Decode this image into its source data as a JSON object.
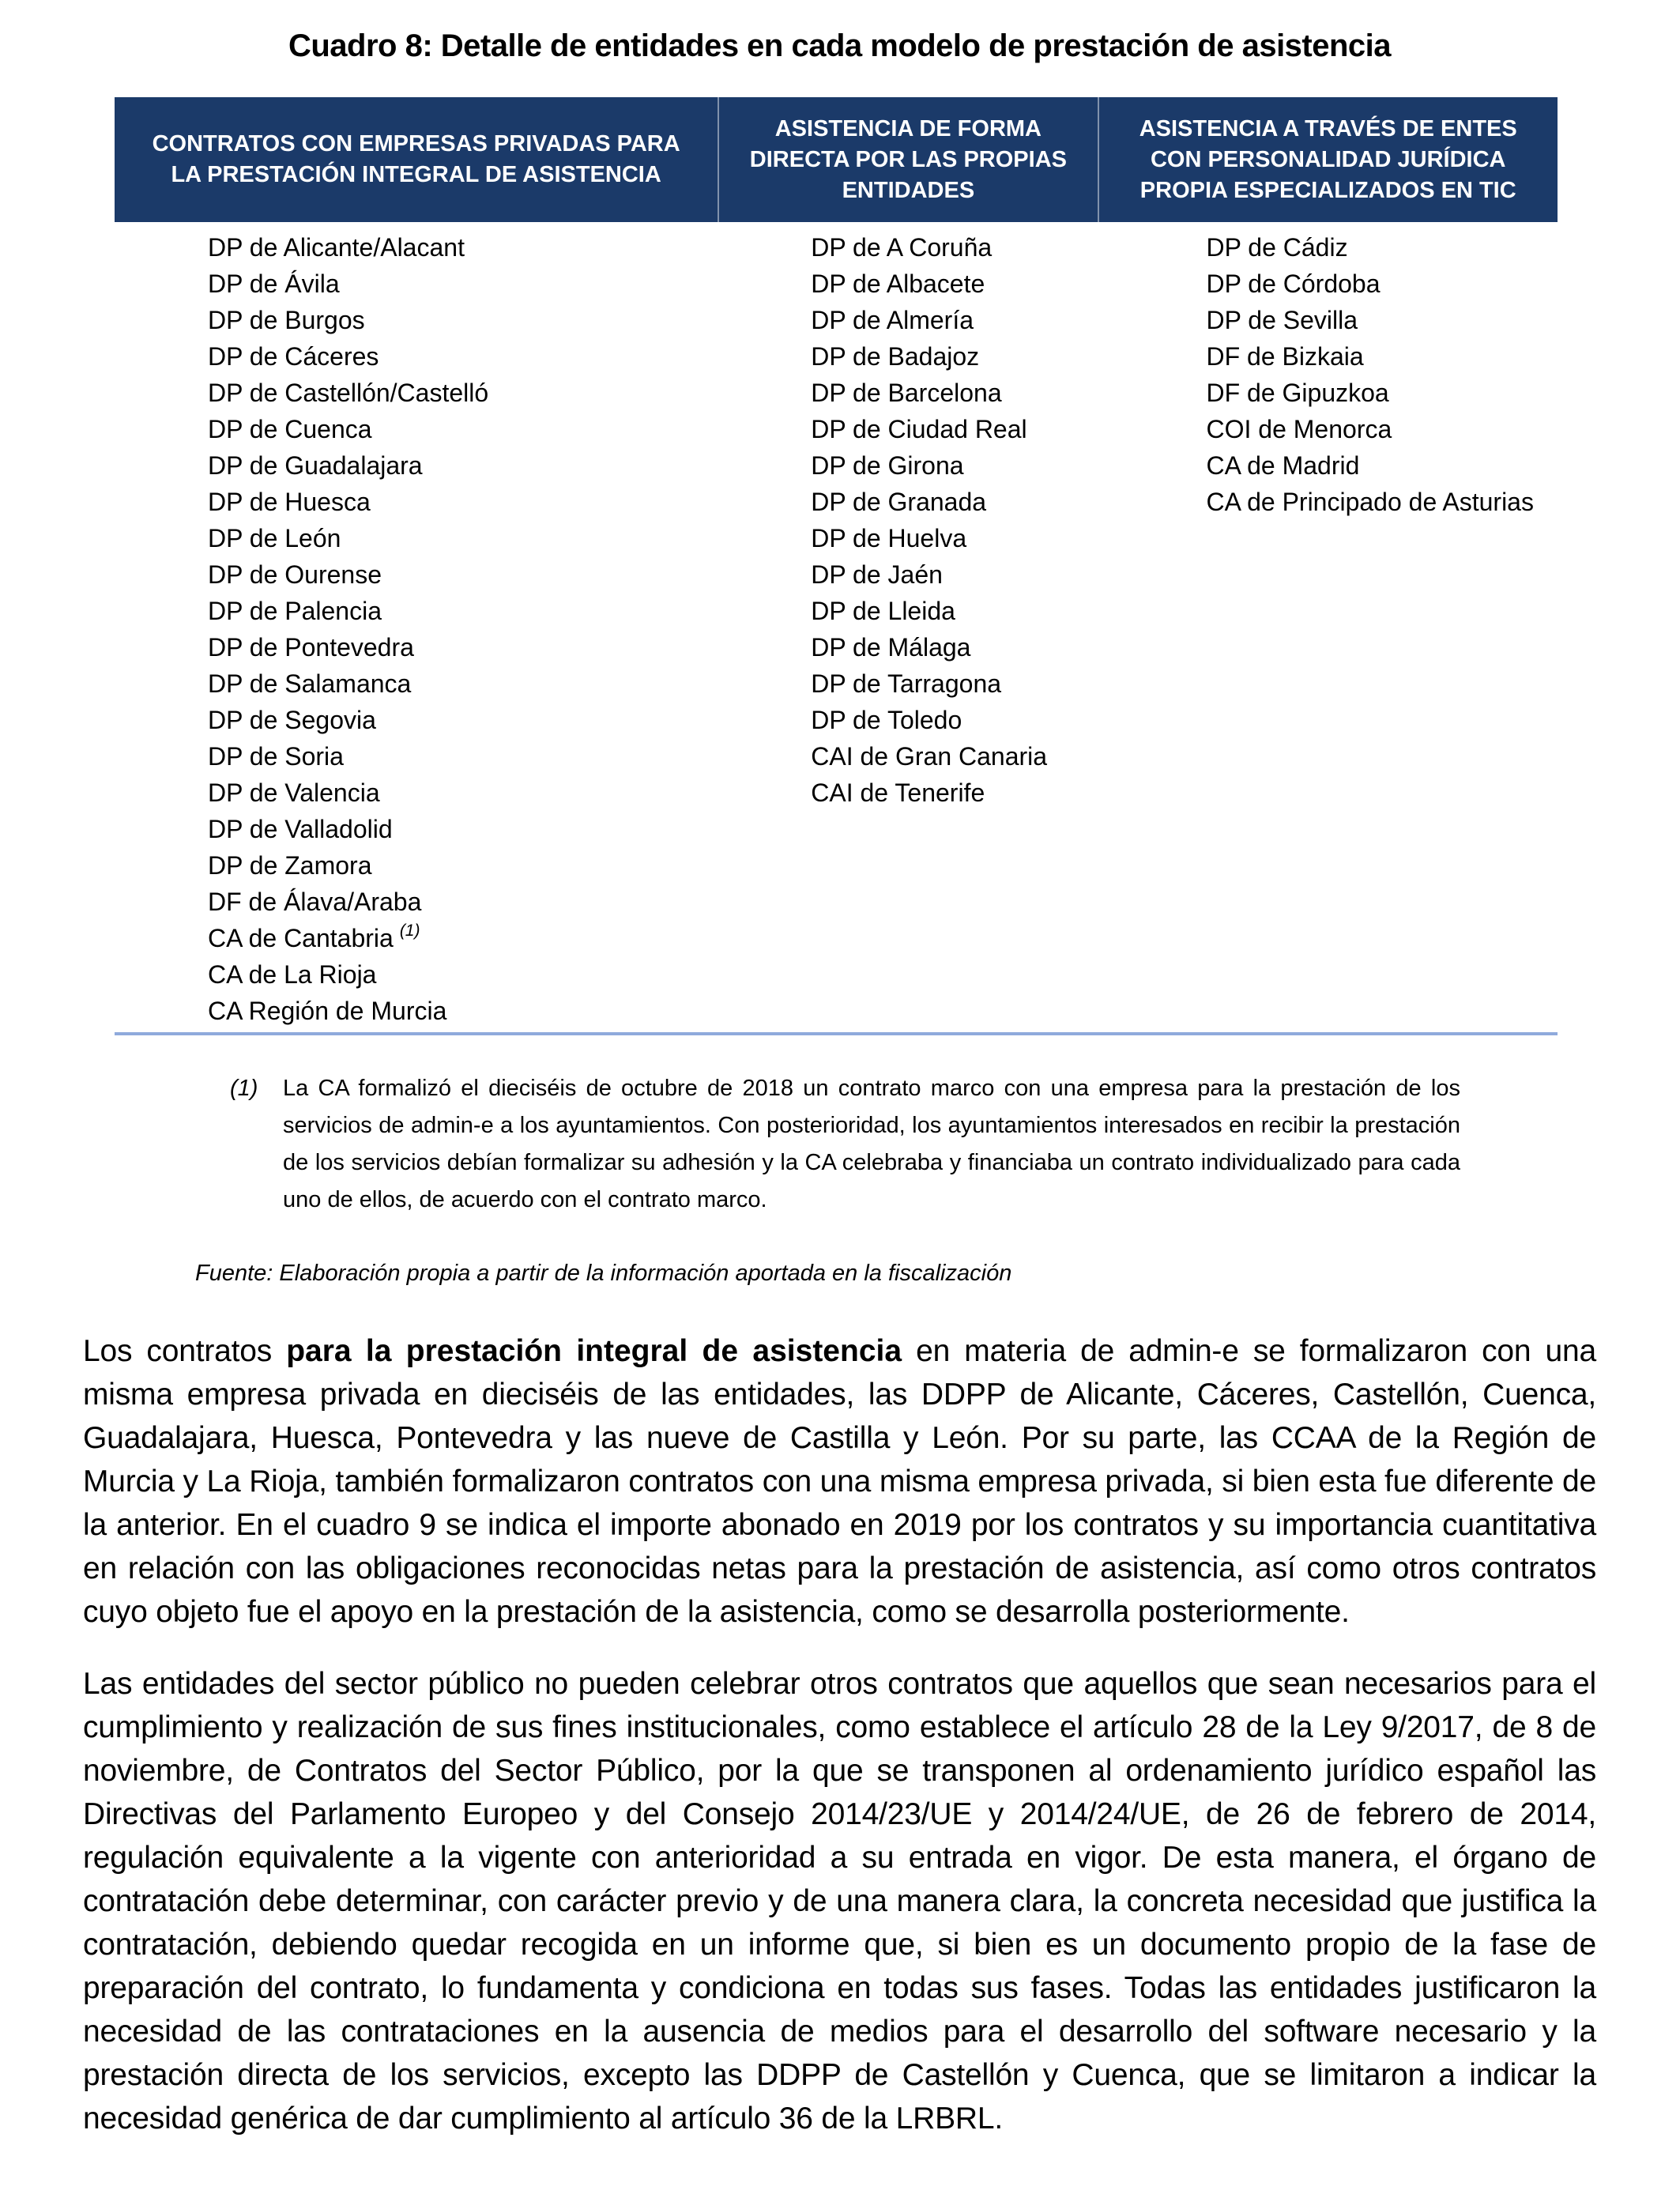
{
  "title": "Cuadro 8: Detalle de entidades en cada modelo de prestación de asistencia",
  "colors": {
    "header_bg": "#1B3A69",
    "header_text": "#FFFFFF",
    "divider": "#8FAADC"
  },
  "table": {
    "columns": [
      {
        "header": "CONTRATOS CON EMPRESAS PRIVADAS PARA LA PRESTACIÓN INTEGRAL DE ASISTENCIA",
        "items": [
          "DP de Alicante/Alacant",
          "DP de Ávila",
          "DP de Burgos",
          "DP de Cáceres",
          "DP de Castellón/Castelló",
          "DP de Cuenca",
          "DP de Guadalajara",
          "DP de Huesca",
          "DP de León",
          "DP de Ourense",
          "DP de Palencia",
          "DP de Pontevedra",
          "DP de Salamanca",
          "DP de Segovia",
          "DP de Soria",
          "DP de Valencia",
          "DP de Valladolid",
          "DP de Zamora",
          "DF de Álava/Araba",
          {
            "text": "CA de Cantabria",
            "sup": "(1)"
          },
          "CA de La Rioja",
          "CA Región de Murcia"
        ]
      },
      {
        "header": "ASISTENCIA DE FORMA DIRECTA POR LAS PROPIAS ENTIDADES",
        "items": [
          "DP de A Coruña",
          "DP de Albacete",
          "DP de Almería",
          "DP de Badajoz",
          "DP de Barcelona",
          "DP de Ciudad Real",
          "DP de Girona",
          "DP de Granada",
          "DP de Huelva",
          "DP de Jaén",
          "DP de Lleida",
          "DP de Málaga",
          "DP de Tarragona",
          "DP de Toledo",
          "CAI de Gran Canaria",
          "CAI de Tenerife"
        ]
      },
      {
        "header": "ASISTENCIA A TRAVÉS DE ENTES CON PERSONALIDAD JURÍDICA PROPIA ESPECIALIZADOS EN TIC",
        "items": [
          "DP de Cádiz",
          "DP de Córdoba",
          "DP de Sevilla",
          "DF de Bizkaia",
          "DF de Gipuzkoa",
          "COI de Menorca",
          "CA de Madrid",
          "CA de Principado de Asturias"
        ]
      }
    ]
  },
  "footnote": {
    "marker": "(1)",
    "text": "La CA formalizó el dieciséis de octubre de 2018 un contrato marco con una empresa para la prestación de los servicios de admin-e a los ayuntamientos. Con posterioridad, los ayuntamientos interesados en recibir la prestación de los servicios debían formalizar su adhesión y la CA celebraba y financiaba un contrato individualizado para cada uno de ellos, de acuerdo con el contrato marco."
  },
  "fuente": "Fuente: Elaboración propia a partir de la información aportada en la fiscalización",
  "paragraphs": [
    [
      {
        "t": "Los contratos "
      },
      {
        "t": "para la prestación integral de asistencia",
        "b": true
      },
      {
        "t": " en materia de admin-e se formalizaron con una misma empresa privada en dieciséis de las entidades, las DDPP de Alicante, Cáceres, Castellón, Cuenca, Guadalajara, Huesca, Pontevedra y las nueve de Castilla y León. Por su parte, las CCAA de la Región de Murcia y La Rioja, también formalizaron contratos con una misma empresa privada, si bien esta fue diferente de la anterior. En el cuadro 9 se indica el importe abonado en 2019 por los contratos y su importancia cuantitativa en relación con las obligaciones reconocidas netas para la prestación de asistencia, así como otros contratos cuyo objeto fue el apoyo en la prestación de la asistencia, como se desarrolla posteriormente."
      }
    ],
    [
      {
        "t": "Las entidades del sector público no pueden celebrar otros contratos que aquellos que sean necesarios para el cumplimiento y realización de sus fines institucionales, como establece el artículo 28 de la Ley 9/2017, de 8 de noviembre, de Contratos del Sector Público, por la que se transponen al ordenamiento jurídico español las Directivas del Parlamento Europeo y del Consejo 2014/23/UE y 2014/24/UE, de 26 de febrero de 2014, regulación equivalente a la vigente con anterioridad a su entrada en vigor. De esta manera, el órgano de contratación debe determinar, con carácter previo y de una manera clara, la concreta necesidad que justifica la contratación, debiendo quedar recogida en un informe que, si bien es un documento propio de la fase de preparación del contrato, lo fundamenta y condiciona en todas sus fases. Todas las entidades justificaron la necesidad de las contrataciones en la ausencia de medios para el desarrollo del software necesario y la prestación directa de los servicios, excepto las DDPP de Castellón y Cuenca, que se limitaron a indicar la necesidad genérica de dar cumplimiento al artículo 36 de la LRBRL."
      }
    ]
  ]
}
